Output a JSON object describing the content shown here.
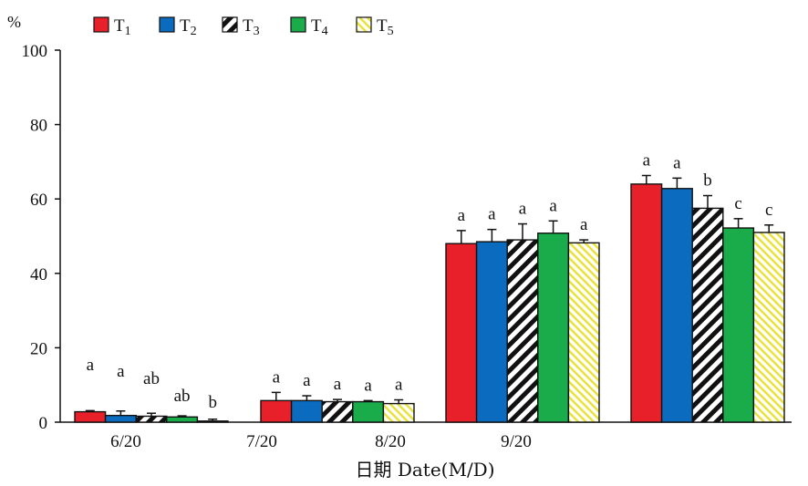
{
  "chart_data": {
    "type": "bar",
    "unit_label": "%",
    "xlabel": "日期 Date(M/D)",
    "ylabel": "",
    "ylim": [
      0,
      100
    ],
    "yticks": [
      0,
      20,
      40,
      60,
      80,
      100
    ],
    "grid": false,
    "legend_position": "top-left",
    "category_labels": [
      "6/20",
      "7/20",
      "8/20",
      "9/20"
    ],
    "groups": 5,
    "series": [
      {
        "name": "T1",
        "base": "T",
        "sub": "1",
        "color": "#e8202a",
        "pattern": "solid",
        "values": [
          2.8,
          5.8,
          48.0,
          64.0,
          0
        ],
        "errors": [
          0.3,
          2.2,
          3.5,
          2.3,
          0
        ],
        "letters": [
          "a",
          "a",
          "a",
          "a"
        ]
      },
      {
        "name": "T2",
        "base": "T",
        "sub": "2",
        "color": "#0a6bbf",
        "pattern": "solid",
        "values": [
          1.8,
          5.8,
          48.5,
          62.8,
          0
        ],
        "errors": [
          1.2,
          1.3,
          3.3,
          2.8,
          0
        ],
        "letters": [
          "a",
          "a",
          "a",
          "a"
        ]
      },
      {
        "name": "T3",
        "base": "T",
        "sub": "3",
        "color": "#111111",
        "pattern": "hatch-black",
        "values": [
          1.6,
          5.5,
          49.0,
          57.5,
          0
        ],
        "errors": [
          0.8,
          0.6,
          4.3,
          3.4,
          0
        ],
        "letters": [
          "ab",
          "a",
          "a",
          "b"
        ]
      },
      {
        "name": "T4",
        "base": "T",
        "sub": "4",
        "color": "#1aab4b",
        "pattern": "solid",
        "values": [
          1.4,
          5.5,
          50.8,
          52.2,
          0
        ],
        "errors": [
          0.3,
          0.3,
          3.3,
          2.5,
          0
        ],
        "letters": [
          "ab",
          "a",
          "a",
          "c"
        ]
      },
      {
        "name": "T5",
        "base": "T",
        "sub": "5",
        "color": "#f2ec3a",
        "pattern": "hatch-yellow",
        "values": [
          0.3,
          5.0,
          48.2,
          51.0,
          0
        ],
        "errors": [
          0.5,
          1.0,
          0.8,
          2.0,
          0
        ],
        "letters": [
          "b",
          "a",
          "a",
          "c"
        ]
      }
    ]
  }
}
